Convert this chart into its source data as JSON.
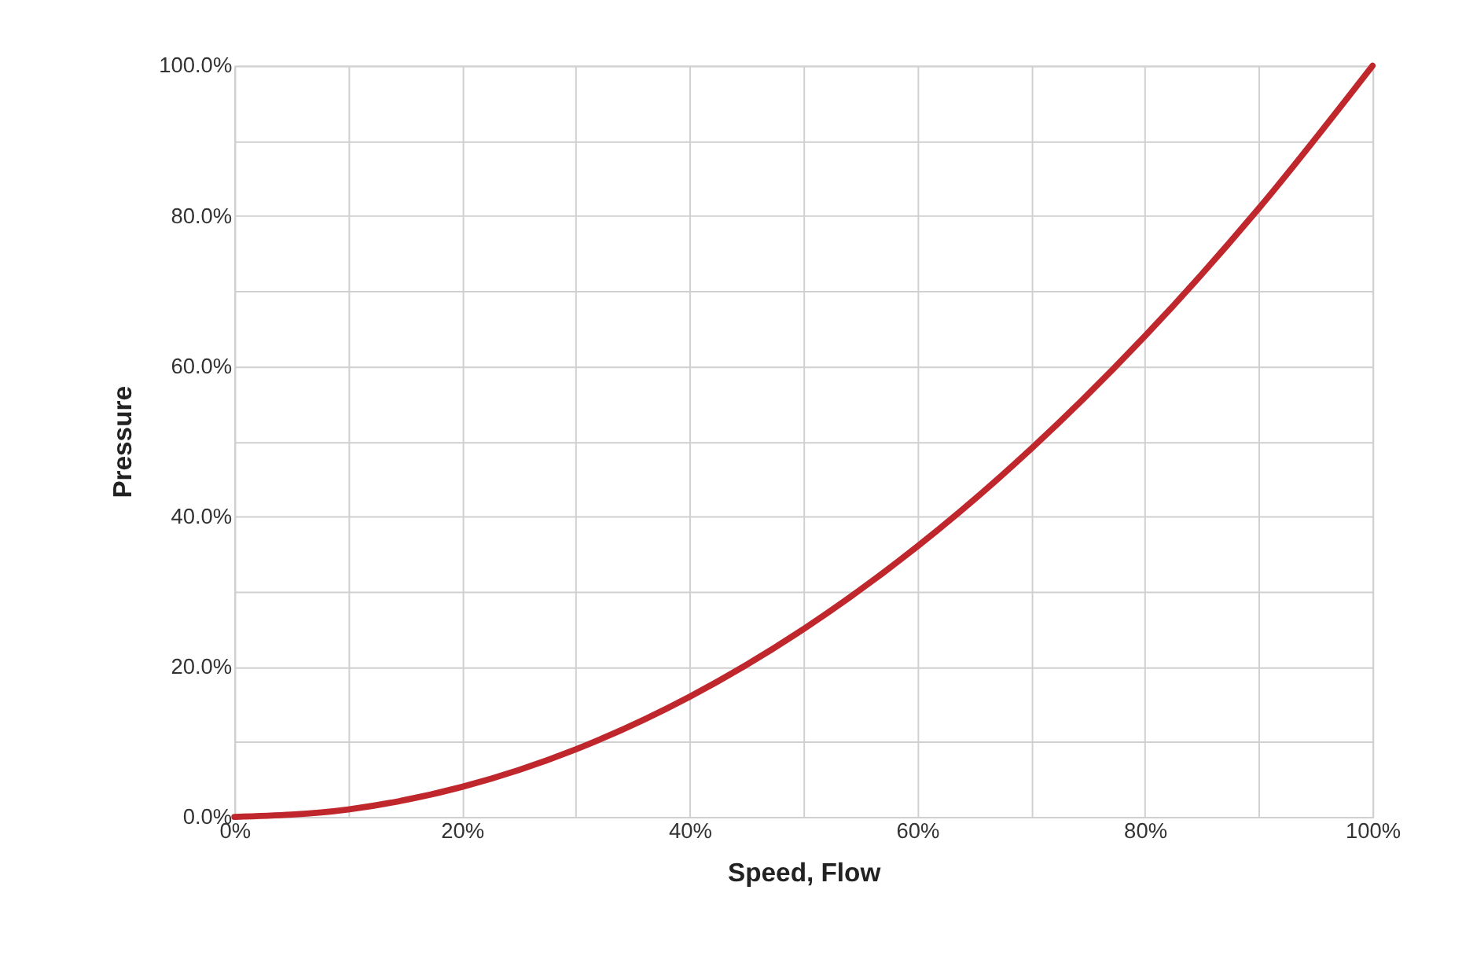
{
  "chart_data": {
    "type": "line",
    "xlabel": "Speed, Flow",
    "ylabel": "Pressure",
    "x": [
      0,
      10,
      20,
      30,
      40,
      50,
      60,
      70,
      80,
      90,
      100
    ],
    "series": [
      {
        "color": "#c0272d",
        "values": [
          0,
          1,
          4,
          9,
          16,
          25,
          36,
          49,
          64,
          81,
          100
        ]
      }
    ],
    "xlim": [
      0,
      100
    ],
    "ylim": [
      0,
      100
    ],
    "xticks": [
      {
        "value": 0,
        "label": "0%"
      },
      {
        "value": 10,
        "label": null
      },
      {
        "value": 20,
        "label": "20%"
      },
      {
        "value": 30,
        "label": null
      },
      {
        "value": 40,
        "label": "40%"
      },
      {
        "value": 50,
        "label": null
      },
      {
        "value": 60,
        "label": "60%"
      },
      {
        "value": 70,
        "label": null
      },
      {
        "value": 80,
        "label": "80%"
      },
      {
        "value": 90,
        "label": null
      },
      {
        "value": 100,
        "label": "100%"
      }
    ],
    "yticks": [
      {
        "value": 0,
        "label": "0.0%"
      },
      {
        "value": 10,
        "label": null
      },
      {
        "value": 20,
        "label": "20.0%"
      },
      {
        "value": 30,
        "label": null
      },
      {
        "value": 40,
        "label": "40.0%"
      },
      {
        "value": 50,
        "label": null
      },
      {
        "value": 60,
        "label": "60.0%"
      },
      {
        "value": 70,
        "label": null
      },
      {
        "value": 80,
        "label": "80.0%"
      },
      {
        "value": 90,
        "label": null
      },
      {
        "value": 100,
        "label": "100.0%"
      }
    ],
    "grid": true,
    "marker": "none",
    "line_style": "solid"
  }
}
